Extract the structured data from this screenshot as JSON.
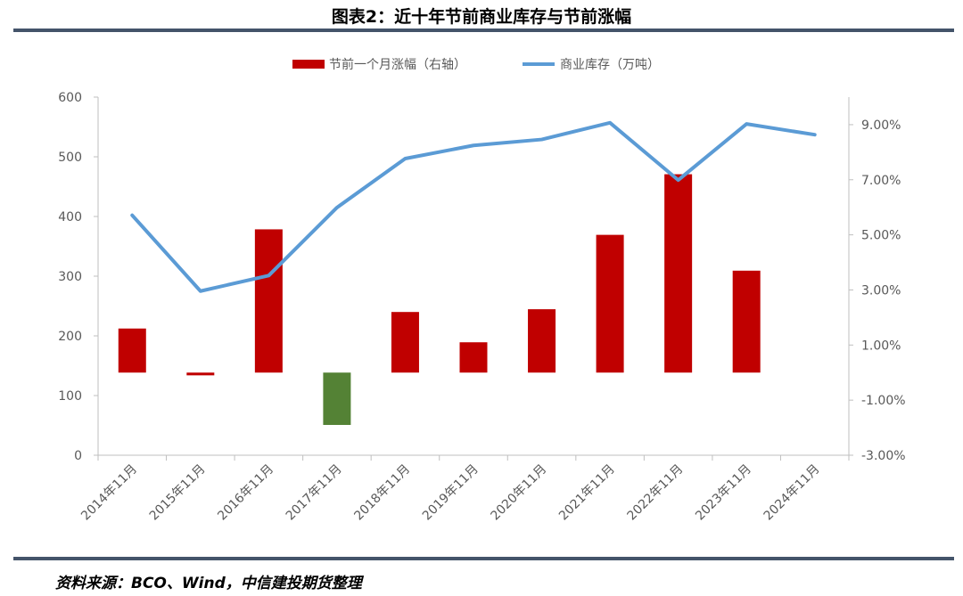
{
  "title": "图表2：近十年节前商业库存与节前涨幅",
  "source": "资料来源：BCO、Wind，中信建投期货整理",
  "chart_data": {
    "type": "bar+line",
    "categories": [
      "2014年11月",
      "2015年11月",
      "2016年11月",
      "2017年11月",
      "2018年11月",
      "2019年11月",
      "2020年11月",
      "2021年11月",
      "2022年11月",
      "2023年11月",
      "2024年11月"
    ],
    "series": [
      {
        "name": "节前一个月涨幅（右轴）",
        "type": "bar",
        "axis": "right",
        "color": "#C00000",
        "negative_color": "#548235",
        "values": [
          1.6,
          -0.1,
          5.2,
          -1.9,
          2.2,
          1.1,
          2.3,
          5.0,
          7.2,
          3.7,
          null
        ]
      },
      {
        "name": "商业库存（万吨）",
        "type": "line",
        "axis": "left",
        "color": "#5B9BD5",
        "values": [
          402,
          275,
          301,
          415,
          497,
          519,
          529,
          557,
          461,
          555,
          537
        ]
      }
    ],
    "left_axis": {
      "min": 0,
      "max": 600,
      "ticks": [
        "0",
        "100",
        "200",
        "300",
        "400",
        "500",
        "600"
      ]
    },
    "right_axis": {
      "min": -3,
      "max": 10,
      "ticks": [
        "-3.00%",
        "-1.00%",
        "1.00%",
        "3.00%",
        "5.00%",
        "7.00%",
        "9.00%"
      ],
      "tick_values": [
        -3,
        -1,
        1,
        3,
        5,
        7,
        9
      ]
    },
    "legend": "top"
  }
}
